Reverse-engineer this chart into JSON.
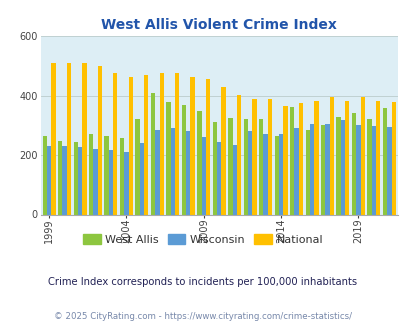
{
  "title": "West Allis Violent Crime Index",
  "title_color": "#2255aa",
  "subtitle": "Crime Index corresponds to incidents per 100,000 inhabitants",
  "footer": "© 2025 CityRating.com - https://www.cityrating.com/crime-statistics/",
  "years": [
    1999,
    2000,
    2001,
    2002,
    2003,
    2004,
    2005,
    2006,
    2007,
    2008,
    2009,
    2010,
    2011,
    2012,
    2013,
    2014,
    2015,
    2016,
    2017,
    2018,
    2019,
    2020,
    2021
  ],
  "west_allis": [
    265,
    248,
    245,
    270,
    265,
    258,
    323,
    408,
    378,
    370,
    348,
    310,
    325,
    320,
    322,
    265,
    362,
    285,
    301,
    329,
    341,
    323,
    359
  ],
  "wisconsin": [
    232,
    232,
    228,
    220,
    218,
    210,
    242,
    285,
    292,
    280,
    260,
    245,
    235,
    280,
    270,
    270,
    290,
    305,
    305,
    319,
    302,
    298,
    295
  ],
  "national": [
    510,
    510,
    510,
    500,
    475,
    463,
    470,
    475,
    475,
    462,
    455,
    430,
    404,
    388,
    390,
    365,
    375,
    383,
    395,
    383,
    397,
    383,
    380
  ],
  "west_allis_color": "#8dc63f",
  "wisconsin_color": "#5b9bd5",
  "national_color": "#ffc000",
  "bg_color": "#ddeef5",
  "ylim": [
    0,
    600
  ],
  "yticks": [
    0,
    200,
    400,
    600
  ],
  "xlabel_years": [
    1999,
    2004,
    2009,
    2014,
    2019
  ],
  "bar_width": 0.28,
  "legend_labels": [
    "West Allis",
    "Wisconsin",
    "National"
  ],
  "tick_color": "#444444",
  "grid_color": "#bbcccc",
  "subtitle_color": "#222255",
  "footer_color": "#7788aa"
}
